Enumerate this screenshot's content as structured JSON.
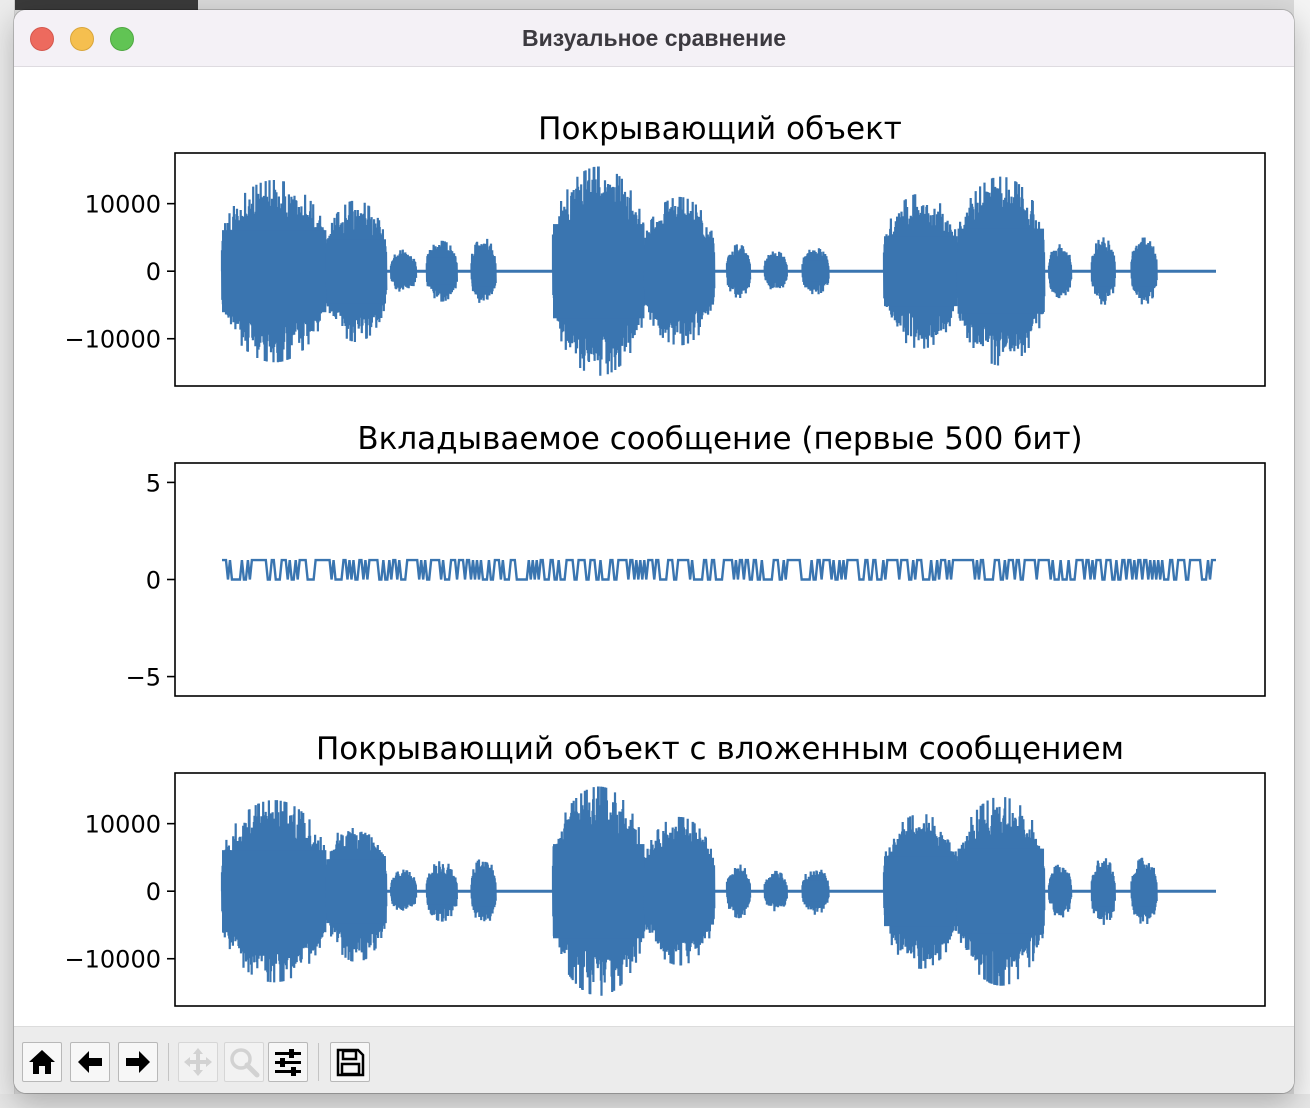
{
  "window": {
    "title": "Визуальное сравнение"
  },
  "colors": {
    "line": "#3a75b0",
    "axes": "#000000",
    "titlebar": "#f4f1f6"
  },
  "toolbar": {
    "buttons": [
      {
        "name": "home-icon",
        "enabled": true
      },
      {
        "name": "back-arrow-icon",
        "enabled": true
      },
      {
        "name": "forward-arrow-icon",
        "enabled": true
      },
      {
        "name": "pan-icon",
        "enabled": false
      },
      {
        "name": "zoom-icon",
        "enabled": false
      },
      {
        "name": "configure-subplots-icon",
        "enabled": true
      },
      {
        "name": "save-icon",
        "enabled": true
      }
    ]
  },
  "chart_data": [
    {
      "type": "line",
      "title": "Покрывающий объект",
      "xlabel": "",
      "ylabel": "",
      "ylim": [
        -17000,
        17500
      ],
      "yticks": [
        -10000,
        0,
        10000
      ],
      "ytick_labels": [
        "−10000",
        "0",
        "10000"
      ],
      "show_xticks": false,
      "grid": false,
      "segments": [
        {
          "start": 0.0,
          "end": 0.105,
          "peak": 13500
        },
        {
          "start": 0.105,
          "end": 0.165,
          "peak": 10500
        },
        {
          "start": 0.17,
          "end": 0.195,
          "peak": 3200
        },
        {
          "start": 0.206,
          "end": 0.236,
          "peak": 4500
        },
        {
          "start": 0.251,
          "end": 0.275,
          "peak": 5000
        },
        {
          "start": 0.333,
          "end": 0.425,
          "peak": 15500
        },
        {
          "start": 0.425,
          "end": 0.495,
          "peak": 11000
        },
        {
          "start": 0.508,
          "end": 0.531,
          "peak": 4000
        },
        {
          "start": 0.546,
          "end": 0.568,
          "peak": 3000
        },
        {
          "start": 0.584,
          "end": 0.61,
          "peak": 3500
        },
        {
          "start": 0.666,
          "end": 0.74,
          "peak": 11500
        },
        {
          "start": 0.74,
          "end": 0.827,
          "peak": 14000
        },
        {
          "start": 0.832,
          "end": 0.854,
          "peak": 4000
        },
        {
          "start": 0.875,
          "end": 0.898,
          "peak": 5000
        },
        {
          "start": 0.915,
          "end": 0.94,
          "peak": 5000
        }
      ]
    },
    {
      "type": "line",
      "title": "Вкладываемое сообщение (первые 500 бит)",
      "xlabel": "",
      "ylabel": "",
      "ylim": [
        -6,
        6
      ],
      "yticks": [
        -5,
        0,
        5
      ],
      "ytick_labels": [
        "−5",
        "0",
        "5"
      ],
      "show_xticks": false,
      "grid": false,
      "n_bits": 500,
      "bit_values": [
        0,
        1
      ]
    },
    {
      "type": "line",
      "title": "Покрывающий объект с вложенным сообщением",
      "xlabel": "",
      "ylabel": "",
      "ylim": [
        -17000,
        17500
      ],
      "yticks": [
        -10000,
        0,
        10000
      ],
      "ytick_labels": [
        "−10000",
        "0",
        "10000"
      ],
      "show_xticks": false,
      "grid": false,
      "segments": [
        {
          "start": 0.0,
          "end": 0.105,
          "peak": 13500
        },
        {
          "start": 0.105,
          "end": 0.165,
          "peak": 10500
        },
        {
          "start": 0.17,
          "end": 0.195,
          "peak": 3200
        },
        {
          "start": 0.206,
          "end": 0.236,
          "peak": 4500
        },
        {
          "start": 0.251,
          "end": 0.275,
          "peak": 5000
        },
        {
          "start": 0.333,
          "end": 0.425,
          "peak": 15500
        },
        {
          "start": 0.425,
          "end": 0.495,
          "peak": 11000
        },
        {
          "start": 0.508,
          "end": 0.531,
          "peak": 4000
        },
        {
          "start": 0.546,
          "end": 0.568,
          "peak": 3000
        },
        {
          "start": 0.584,
          "end": 0.61,
          "peak": 3500
        },
        {
          "start": 0.666,
          "end": 0.74,
          "peak": 11500
        },
        {
          "start": 0.74,
          "end": 0.827,
          "peak": 14000
        },
        {
          "start": 0.832,
          "end": 0.854,
          "peak": 4000
        },
        {
          "start": 0.875,
          "end": 0.898,
          "peak": 5000
        },
        {
          "start": 0.915,
          "end": 0.94,
          "peak": 5000
        }
      ]
    }
  ]
}
